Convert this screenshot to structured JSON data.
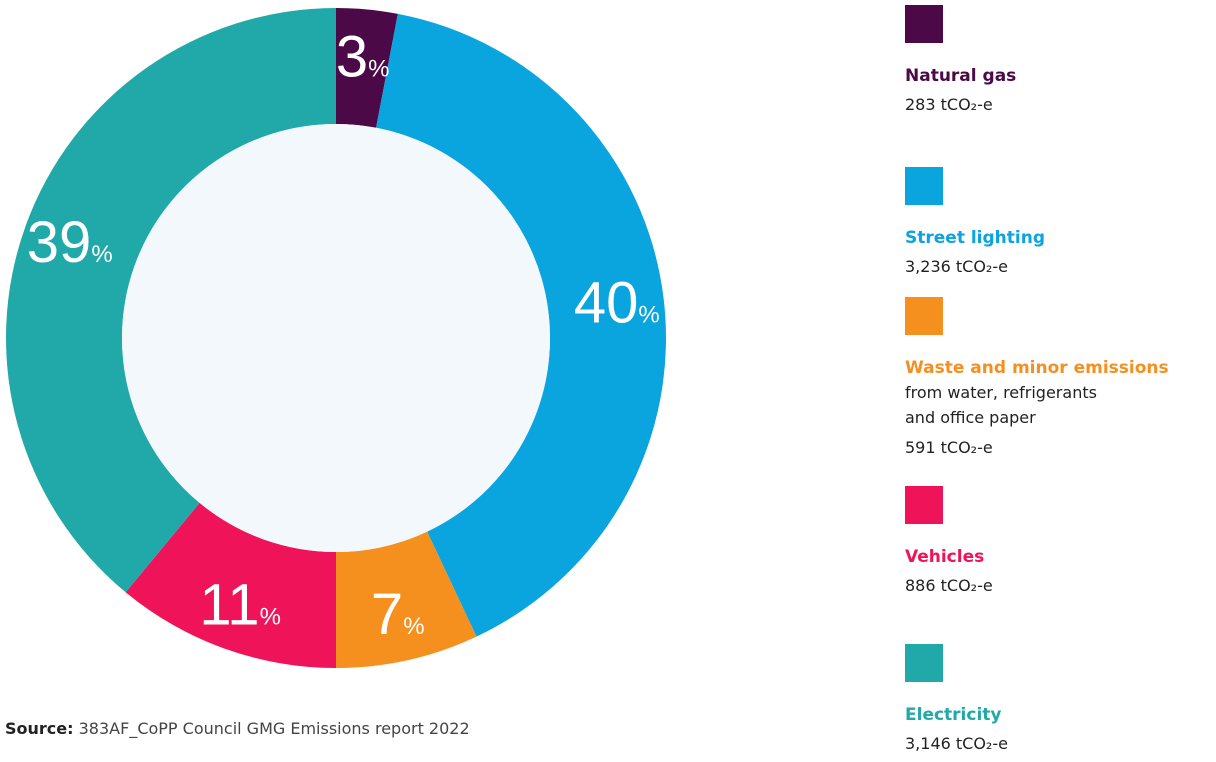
{
  "chart_data": {
    "type": "donut",
    "categories": [
      "Natural gas",
      "Street lighting",
      "Waste and minor emissions",
      "Vehicles",
      "Electricity"
    ],
    "values": [
      3,
      40,
      7,
      11,
      39
    ],
    "unit": "%",
    "colors": [
      "#4b0a47",
      "#0aa4df",
      "#f5901f",
      "#ef135a",
      "#21a9a9"
    ],
    "amounts": [
      "283 tCO₂-e",
      "3,236 tCO₂-e",
      "591 tCO₂-e",
      "886 tCO₂-e",
      "3,146 tCO₂-e"
    ],
    "waste_note": [
      "from water, refrigerants",
      "and office paper"
    ],
    "source_label": "Source:",
    "source": "383AF_CoPP Council GMG Emissions report 2022"
  }
}
